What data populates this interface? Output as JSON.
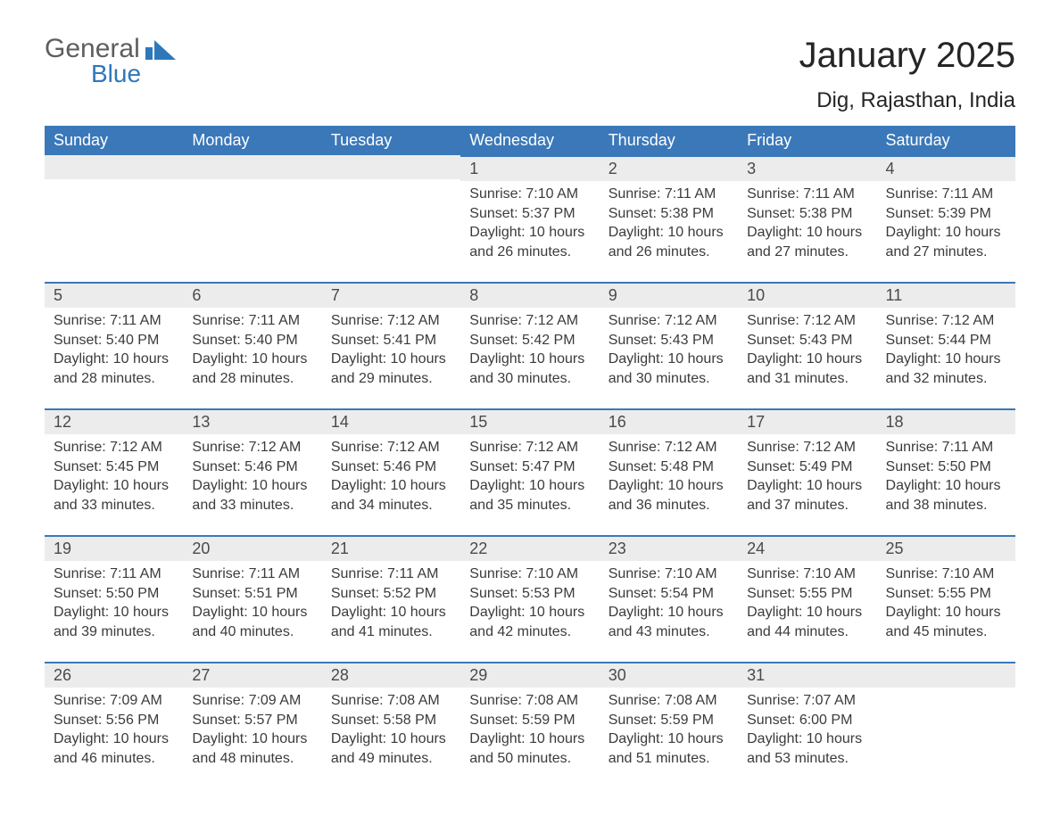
{
  "brand": {
    "word1": "General",
    "word2": "Blue",
    "shape_color": "#2f77bb"
  },
  "title": "January 2025",
  "location": "Dig, Rajasthan, India",
  "colors": {
    "header_bg": "#3a78b9",
    "header_text": "#ffffff",
    "daybar_bg": "#ececec",
    "daybar_border": "#3a78b9",
    "body_text": "#3b3b3b",
    "page_bg": "#ffffff"
  },
  "weekdays": [
    "Sunday",
    "Monday",
    "Tuesday",
    "Wednesday",
    "Thursday",
    "Friday",
    "Saturday"
  ],
  "labels": {
    "sunrise": "Sunrise:",
    "sunset": "Sunset:",
    "daylight_prefix": "Daylight:"
  },
  "weeks": [
    [
      null,
      null,
      null,
      {
        "n": "1",
        "sunrise": "7:10 AM",
        "sunset": "5:37 PM",
        "daylight": "10 hours and 26 minutes."
      },
      {
        "n": "2",
        "sunrise": "7:11 AM",
        "sunset": "5:38 PM",
        "daylight": "10 hours and 26 minutes."
      },
      {
        "n": "3",
        "sunrise": "7:11 AM",
        "sunset": "5:38 PM",
        "daylight": "10 hours and 27 minutes."
      },
      {
        "n": "4",
        "sunrise": "7:11 AM",
        "sunset": "5:39 PM",
        "daylight": "10 hours and 27 minutes."
      }
    ],
    [
      {
        "n": "5",
        "sunrise": "7:11 AM",
        "sunset": "5:40 PM",
        "daylight": "10 hours and 28 minutes."
      },
      {
        "n": "6",
        "sunrise": "7:11 AM",
        "sunset": "5:40 PM",
        "daylight": "10 hours and 28 minutes."
      },
      {
        "n": "7",
        "sunrise": "7:12 AM",
        "sunset": "5:41 PM",
        "daylight": "10 hours and 29 minutes."
      },
      {
        "n": "8",
        "sunrise": "7:12 AM",
        "sunset": "5:42 PM",
        "daylight": "10 hours and 30 minutes."
      },
      {
        "n": "9",
        "sunrise": "7:12 AM",
        "sunset": "5:43 PM",
        "daylight": "10 hours and 30 minutes."
      },
      {
        "n": "10",
        "sunrise": "7:12 AM",
        "sunset": "5:43 PM",
        "daylight": "10 hours and 31 minutes."
      },
      {
        "n": "11",
        "sunrise": "7:12 AM",
        "sunset": "5:44 PM",
        "daylight": "10 hours and 32 minutes."
      }
    ],
    [
      {
        "n": "12",
        "sunrise": "7:12 AM",
        "sunset": "5:45 PM",
        "daylight": "10 hours and 33 minutes."
      },
      {
        "n": "13",
        "sunrise": "7:12 AM",
        "sunset": "5:46 PM",
        "daylight": "10 hours and 33 minutes."
      },
      {
        "n": "14",
        "sunrise": "7:12 AM",
        "sunset": "5:46 PM",
        "daylight": "10 hours and 34 minutes."
      },
      {
        "n": "15",
        "sunrise": "7:12 AM",
        "sunset": "5:47 PM",
        "daylight": "10 hours and 35 minutes."
      },
      {
        "n": "16",
        "sunrise": "7:12 AM",
        "sunset": "5:48 PM",
        "daylight": "10 hours and 36 minutes."
      },
      {
        "n": "17",
        "sunrise": "7:12 AM",
        "sunset": "5:49 PM",
        "daylight": "10 hours and 37 minutes."
      },
      {
        "n": "18",
        "sunrise": "7:11 AM",
        "sunset": "5:50 PM",
        "daylight": "10 hours and 38 minutes."
      }
    ],
    [
      {
        "n": "19",
        "sunrise": "7:11 AM",
        "sunset": "5:50 PM",
        "daylight": "10 hours and 39 minutes."
      },
      {
        "n": "20",
        "sunrise": "7:11 AM",
        "sunset": "5:51 PM",
        "daylight": "10 hours and 40 minutes."
      },
      {
        "n": "21",
        "sunrise": "7:11 AM",
        "sunset": "5:52 PM",
        "daylight": "10 hours and 41 minutes."
      },
      {
        "n": "22",
        "sunrise": "7:10 AM",
        "sunset": "5:53 PM",
        "daylight": "10 hours and 42 minutes."
      },
      {
        "n": "23",
        "sunrise": "7:10 AM",
        "sunset": "5:54 PM",
        "daylight": "10 hours and 43 minutes."
      },
      {
        "n": "24",
        "sunrise": "7:10 AM",
        "sunset": "5:55 PM",
        "daylight": "10 hours and 44 minutes."
      },
      {
        "n": "25",
        "sunrise": "7:10 AM",
        "sunset": "5:55 PM",
        "daylight": "10 hours and 45 minutes."
      }
    ],
    [
      {
        "n": "26",
        "sunrise": "7:09 AM",
        "sunset": "5:56 PM",
        "daylight": "10 hours and 46 minutes."
      },
      {
        "n": "27",
        "sunrise": "7:09 AM",
        "sunset": "5:57 PM",
        "daylight": "10 hours and 48 minutes."
      },
      {
        "n": "28",
        "sunrise": "7:08 AM",
        "sunset": "5:58 PM",
        "daylight": "10 hours and 49 minutes."
      },
      {
        "n": "29",
        "sunrise": "7:08 AM",
        "sunset": "5:59 PM",
        "daylight": "10 hours and 50 minutes."
      },
      {
        "n": "30",
        "sunrise": "7:08 AM",
        "sunset": "5:59 PM",
        "daylight": "10 hours and 51 minutes."
      },
      {
        "n": "31",
        "sunrise": "7:07 AM",
        "sunset": "6:00 PM",
        "daylight": "10 hours and 53 minutes."
      },
      null
    ]
  ]
}
